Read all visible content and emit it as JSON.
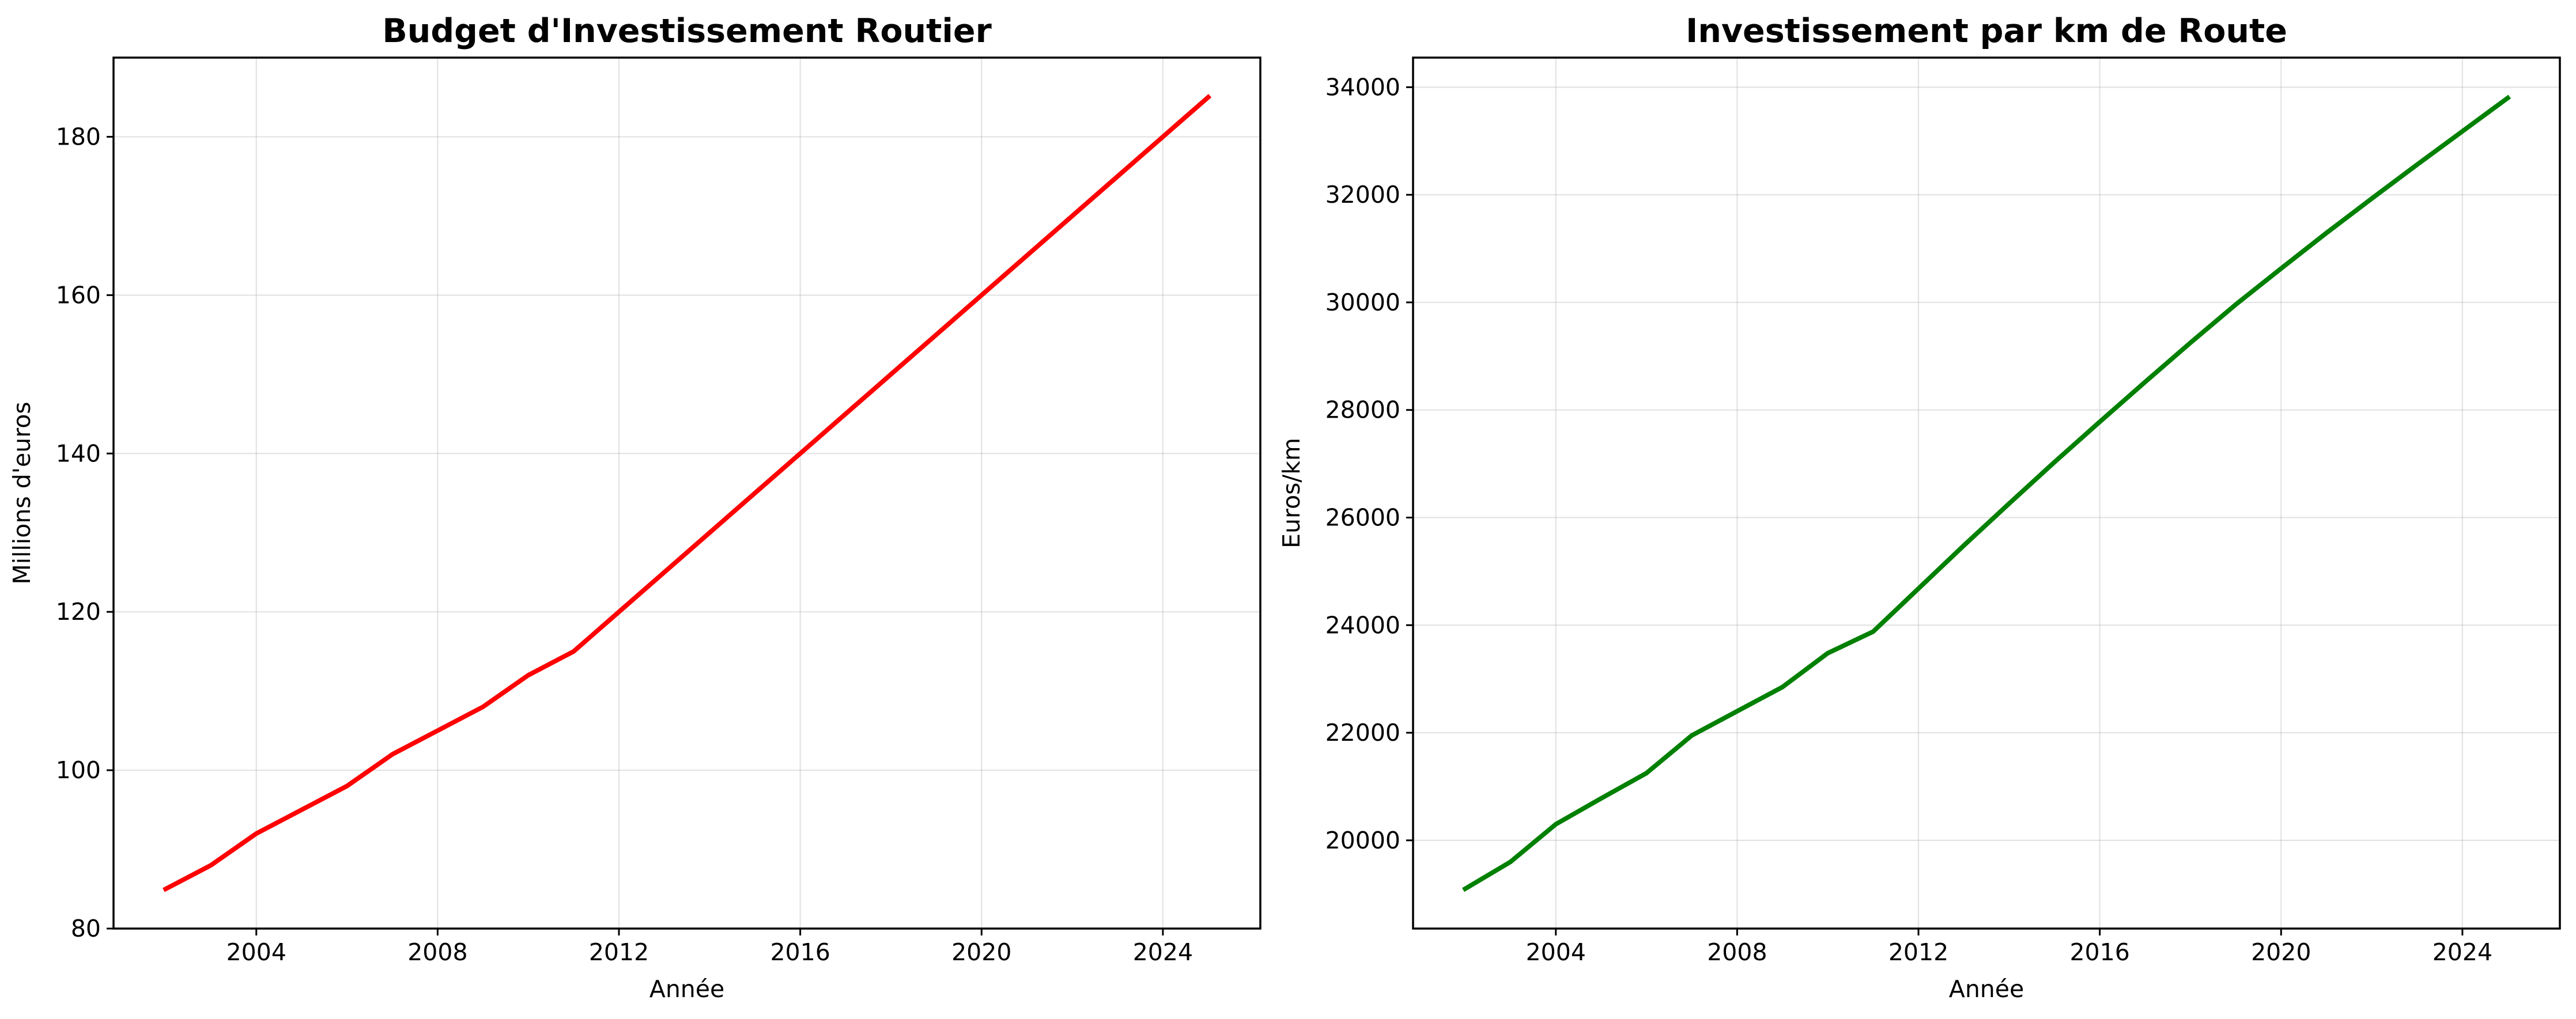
{
  "chart_data": [
    {
      "type": "line",
      "title": "Budget d'Investissement Routier",
      "xlabel": "Année",
      "ylabel": "Millions d'euros",
      "xlim": [
        2000.85,
        2026.15
      ],
      "ylim": [
        80,
        190
      ],
      "xticks": [
        2004,
        2008,
        2012,
        2016,
        2020,
        2024
      ],
      "yticks": [
        80,
        100,
        120,
        140,
        160,
        180
      ],
      "grid": true,
      "series": [
        {
          "color": "#ff0000",
          "x": [
            2002,
            2003,
            2004,
            2005,
            2006,
            2007,
            2008,
            2009,
            2010,
            2011,
            2012,
            2013,
            2014,
            2015,
            2016,
            2017,
            2018,
            2019,
            2020,
            2021,
            2022,
            2023,
            2024,
            2025
          ],
          "y": [
            85,
            88,
            92,
            95,
            98,
            102,
            105,
            108,
            112,
            115,
            120,
            125,
            130,
            135,
            140,
            145,
            150,
            155,
            160,
            165,
            170,
            175,
            180,
            185
          ]
        }
      ]
    },
    {
      "type": "line",
      "title": "Investissement par km de Route",
      "xlabel": "Année",
      "ylabel": "Euros/km",
      "xlim": [
        2000.85,
        2026.15
      ],
      "ylim": [
        18360,
        34550
      ],
      "xticks": [
        2004,
        2008,
        2012,
        2016,
        2020,
        2024
      ],
      "yticks": [
        20000,
        22000,
        24000,
        26000,
        28000,
        30000,
        32000,
        34000
      ],
      "grid": true,
      "series": [
        {
          "color": "#008000",
          "x": [
            2002,
            2003,
            2004,
            2005,
            2006,
            2007,
            2008,
            2009,
            2010,
            2011,
            2012,
            2013,
            2014,
            2015,
            2016,
            2017,
            2018,
            2019,
            2020,
            2021,
            2022,
            2023,
            2024,
            2025
          ],
          "y": [
            19100,
            19600,
            20300,
            20780,
            21250,
            21950,
            22400,
            22850,
            23480,
            23880,
            24680,
            25480,
            26260,
            27030,
            27780,
            28520,
            29250,
            29960,
            30630,
            31290,
            31930,
            32560,
            33180,
            33800
          ]
        }
      ]
    }
  ]
}
